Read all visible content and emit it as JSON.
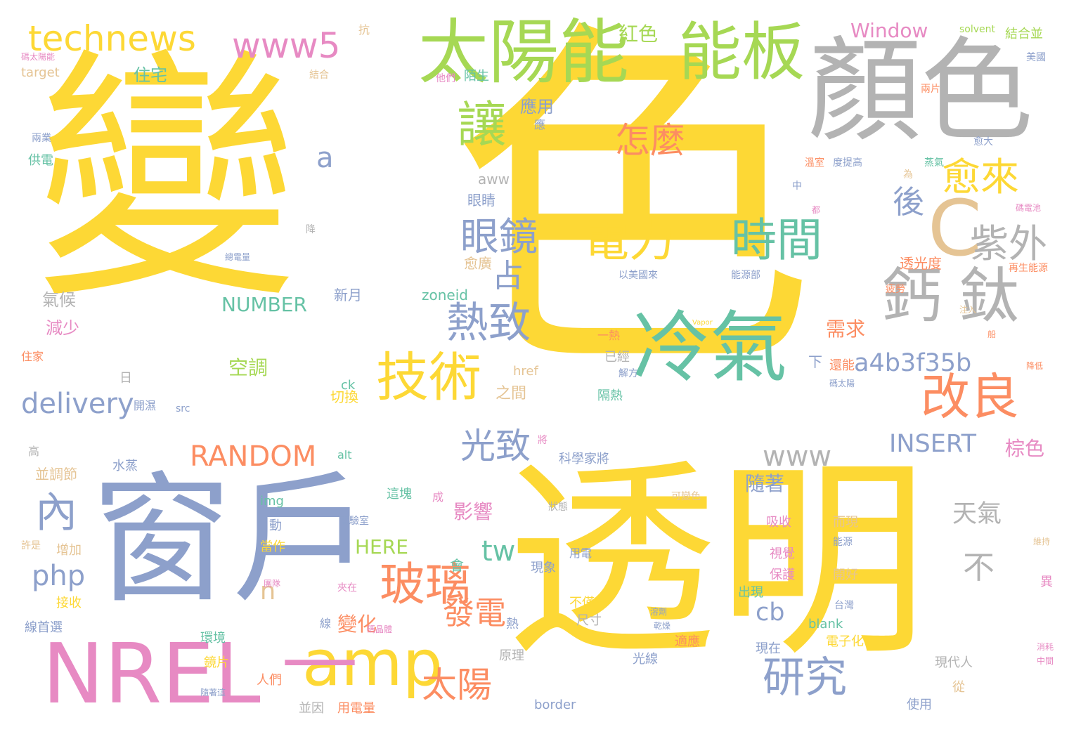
{
  "palette": {
    "yellow": "#fdd835",
    "slate": "#8da0cb",
    "gray": "#b3b3b3",
    "green": "#a6d854",
    "teal": "#66c2a5",
    "orange": "#fc8d62",
    "pink": "#e78ac3",
    "tan": "#e5c494"
  },
  "words": [
    {
      "text": "變",
      "color": "yellow",
      "vertical": false
    },
    {
      "text": "色",
      "color": "yellow",
      "vertical": false
    },
    {
      "text": "透明",
      "color": "yellow",
      "vertical": false
    },
    {
      "text": "窗戶",
      "color": "slate",
      "vertical": false
    },
    {
      "text": "顏色",
      "color": "gray",
      "vertical": false
    },
    {
      "text": "NREL",
      "color": "pink",
      "vertical": false
    },
    {
      "text": "冷氣",
      "color": "teal",
      "vertical": false
    },
    {
      "text": "太陽能",
      "color": "green",
      "vertical": false
    },
    {
      "text": "能板",
      "color": "green",
      "vertical": false
    },
    {
      "text": "amp",
      "color": "yellow",
      "vertical": false
    },
    {
      "text": "—",
      "color": "pink",
      "vertical": false
    },
    {
      "text": "technews",
      "color": "yellow",
      "vertical": false
    },
    {
      "text": "www5",
      "color": "pink",
      "vertical": false
    },
    {
      "text": "鈣",
      "color": "gray",
      "vertical": false
    },
    {
      "text": "鈦",
      "color": "gray",
      "vertical": false
    },
    {
      "text": "C",
      "color": "tan",
      "vertical": false
    },
    {
      "text": "讓",
      "color": "green",
      "vertical": true
    },
    {
      "text": "技術",
      "color": "yellow",
      "vertical": false
    },
    {
      "text": "改良",
      "color": "orange",
      "vertical": false
    },
    {
      "text": "電力",
      "color": "yellow",
      "vertical": false
    },
    {
      "text": "時間",
      "color": "teal",
      "vertical": false
    },
    {
      "text": "玻璃",
      "color": "orange",
      "vertical": false
    },
    {
      "text": "熱致",
      "color": "slate",
      "vertical": false
    },
    {
      "text": "眼鏡",
      "color": "slate",
      "vertical": false
    },
    {
      "text": "研究",
      "color": "slate",
      "vertical": false
    },
    {
      "text": "太陽",
      "color": "orange",
      "vertical": false
    },
    {
      "text": "發電",
      "color": "orange",
      "vertical": false
    },
    {
      "text": "紫外",
      "color": "gray",
      "vertical": false
    },
    {
      "text": "愈來",
      "color": "yellow",
      "vertical": false
    },
    {
      "text": "怎麼",
      "color": "orange",
      "vertical": false
    },
    {
      "text": "光致",
      "color": "slate",
      "vertical": false
    },
    {
      "text": "delivery",
      "color": "slate",
      "vertical": false
    },
    {
      "text": "a4b3f35b",
      "color": "slate",
      "vertical": false
    },
    {
      "text": "RANDOM",
      "color": "orange",
      "vertical": false
    },
    {
      "text": "INSERT",
      "color": "slate",
      "vertical": false
    },
    {
      "text": "www",
      "color": "gray",
      "vertical": false
    },
    {
      "text": "內",
      "color": "slate",
      "vertical": false
    },
    {
      "text": "占",
      "color": "slate",
      "vertical": false
    },
    {
      "text": "後",
      "color": "slate",
      "vertical": false
    },
    {
      "text": "不",
      "color": "gray",
      "vertical": false
    },
    {
      "text": "tw",
      "color": "teal",
      "vertical": false
    },
    {
      "text": "php",
      "color": "slate",
      "vertical": false
    },
    {
      "text": "cb",
      "color": "slate",
      "vertical": false
    },
    {
      "text": "n",
      "color": "tan",
      "vertical": false
    },
    {
      "text": "a",
      "color": "slate",
      "vertical": false
    },
    {
      "text": "NUMBER",
      "color": "teal",
      "vertical": false
    },
    {
      "text": "HERE",
      "color": "green",
      "vertical": false
    },
    {
      "text": "Window",
      "color": "pink",
      "vertical": false
    },
    {
      "text": "空調",
      "color": "green",
      "vertical": false
    },
    {
      "text": "需求",
      "color": "orange",
      "vertical": false
    },
    {
      "text": "天氣",
      "color": "gray",
      "vertical": false
    },
    {
      "text": "隨著",
      "color": "slate",
      "vertical": false
    },
    {
      "text": "變化",
      "color": "orange",
      "vertical": false
    },
    {
      "text": "影響",
      "color": "pink",
      "vertical": false
    },
    {
      "text": "棕色",
      "color": "pink",
      "vertical": false
    },
    {
      "text": "紅色",
      "color": "green",
      "vertical": false
    },
    {
      "text": "住宅",
      "color": "teal",
      "vertical": false
    },
    {
      "text": "應用",
      "color": "slate",
      "vertical": false
    },
    {
      "text": "氣候",
      "color": "gray",
      "vertical": false
    },
    {
      "text": "減少",
      "color": "pink",
      "vertical": false
    },
    {
      "text": "新月",
      "color": "slate",
      "vertical": false
    },
    {
      "text": "zoneid",
      "color": "teal",
      "vertical": false
    },
    {
      "text": "透光度",
      "color": "orange",
      "vertical": false
    },
    {
      "text": "愈廣",
      "color": "tan",
      "vertical": false
    },
    {
      "text": "眼睛",
      "color": "slate",
      "vertical": false
    },
    {
      "text": "aww",
      "color": "gray",
      "vertical": false
    },
    {
      "text": "供電",
      "color": "teal",
      "vertical": false
    },
    {
      "text": "之間",
      "color": "tan",
      "vertical": false
    },
    {
      "text": "切換",
      "color": "yellow",
      "vertical": false
    },
    {
      "text": "ck",
      "color": "teal",
      "vertical": false
    },
    {
      "text": "href",
      "color": "tan",
      "vertical": false
    },
    {
      "text": "下",
      "color": "slate",
      "vertical": false
    },
    {
      "text": "還能",
      "color": "orange",
      "vertical": false
    },
    {
      "text": "已經",
      "color": "gray",
      "vertical": false
    },
    {
      "text": "隔熱",
      "color": "teal",
      "vertical": false
    },
    {
      "text": "解方",
      "color": "slate",
      "vertical": false
    },
    {
      "text": "一熱",
      "color": "orange",
      "vertical": false
    },
    {
      "text": "開濕",
      "color": "slate",
      "vertical": false
    },
    {
      "text": "src",
      "color": "slate",
      "vertical": false
    },
    {
      "text": "日",
      "color": "gray",
      "vertical": false
    },
    {
      "text": "住家",
      "color": "orange",
      "vertical": false
    },
    {
      "text": "alt",
      "color": "teal",
      "vertical": false
    },
    {
      "text": "水蒸",
      "color": "slate",
      "vertical": false
    },
    {
      "text": "科學家將",
      "color": "slate",
      "vertical": false
    },
    {
      "text": "並調節",
      "color": "tan",
      "vertical": false
    },
    {
      "text": "img",
      "color": "teal",
      "vertical": false
    },
    {
      "text": "自動",
      "color": "slate",
      "vertical": false
    },
    {
      "text": "這塊",
      "color": "teal",
      "vertical": false
    },
    {
      "text": "實驗室",
      "color": "slate",
      "vertical": false
    },
    {
      "text": "吸收",
      "color": "pink",
      "vertical": false
    },
    {
      "text": "而現",
      "color": "tan",
      "vertical": false
    },
    {
      "text": "能源",
      "color": "slate",
      "vertical": false
    },
    {
      "text": "視覺",
      "color": "pink",
      "vertical": false
    },
    {
      "text": "保護",
      "color": "pink",
      "vertical": false
    },
    {
      "text": "出現",
      "color": "teal",
      "vertical": false
    },
    {
      "text": "開好",
      "color": "tan",
      "vertical": false
    },
    {
      "text": "台灣",
      "color": "slate",
      "vertical": false
    },
    {
      "text": "接收",
      "color": "yellow",
      "vertical": false
    },
    {
      "text": "增加",
      "color": "tan",
      "vertical": false
    },
    {
      "text": "當作",
      "color": "yellow",
      "vertical": false
    },
    {
      "text": "會",
      "color": "teal",
      "vertical": false
    },
    {
      "text": "現象",
      "color": "slate",
      "vertical": false
    },
    {
      "text": "用電",
      "color": "slate",
      "vertical": false
    },
    {
      "text": "不僅會",
      "color": "yellow",
      "vertical": false
    },
    {
      "text": "尺寸",
      "color": "gray",
      "vertical": false
    },
    {
      "text": "熱",
      "color": "slate",
      "vertical": false
    },
    {
      "text": "原理",
      "color": "gray",
      "vertical": false
    },
    {
      "text": "光線",
      "color": "slate",
      "vertical": false
    },
    {
      "text": "blank",
      "color": "teal",
      "vertical": false
    },
    {
      "text": "電子化",
      "color": "yellow",
      "vertical": false
    },
    {
      "text": "現在",
      "color": "slate",
      "vertical": false
    },
    {
      "text": "適應",
      "color": "orange",
      "vertical": false
    },
    {
      "text": "現代人",
      "color": "gray",
      "vertical": false
    },
    {
      "text": "從",
      "color": "tan",
      "vertical": false
    },
    {
      "text": "使用",
      "color": "slate",
      "vertical": false
    },
    {
      "text": "線首選",
      "color": "slate",
      "vertical": false
    },
    {
      "text": "環境",
      "color": "teal",
      "vertical": false
    },
    {
      "text": "鏡片",
      "color": "yellow",
      "vertical": false
    },
    {
      "text": "人們",
      "color": "orange",
      "vertical": false
    },
    {
      "text": "並因",
      "color": "gray",
      "vertical": false
    },
    {
      "text": "用電量",
      "color": "orange",
      "vertical": false
    },
    {
      "text": "border",
      "color": "slate",
      "vertical": false
    },
    {
      "text": "許是",
      "color": "tan",
      "vertical": false
    },
    {
      "text": "高",
      "color": "gray",
      "vertical": false
    },
    {
      "text": "抗",
      "color": "tan",
      "vertical": false
    },
    {
      "text": "target",
      "color": "tan",
      "vertical": false
    },
    {
      "text": "碼太陽能",
      "color": "pink",
      "vertical": false
    },
    {
      "text": "結合",
      "color": "tan",
      "vertical": false
    },
    {
      "text": "他們",
      "color": "pink",
      "vertical": false
    },
    {
      "text": "陌生",
      "color": "teal",
      "vertical": false
    },
    {
      "text": "兩業",
      "color": "slate",
      "vertical": false
    },
    {
      "text": "solvent",
      "color": "green",
      "vertical": false
    },
    {
      "text": "結合並",
      "color": "green",
      "vertical": false
    },
    {
      "text": "美國",
      "color": "slate",
      "vertical": false
    },
    {
      "text": "兩片",
      "color": "orange",
      "vertical": false
    },
    {
      "text": "愈大",
      "color": "slate",
      "vertical": false
    },
    {
      "text": "溫室",
      "color": "orange",
      "vertical": false
    },
    {
      "text": "度提高",
      "color": "slate",
      "vertical": false
    },
    {
      "text": "蒸氣",
      "color": "teal",
      "vertical": false
    },
    {
      "text": "為",
      "color": "tan",
      "vertical": false
    },
    {
      "text": "碼電池",
      "color": "pink",
      "vertical": false
    },
    {
      "text": "疲勞",
      "color": "orange",
      "vertical": false
    },
    {
      "text": "以美國來",
      "color": "slate",
      "vertical": false
    },
    {
      "text": "能源部",
      "color": "slate",
      "vertical": false
    },
    {
      "text": "再生能源",
      "color": "orange",
      "vertical": false
    },
    {
      "text": "總電量",
      "color": "slate",
      "vertical": false
    },
    {
      "text": "注入",
      "color": "tan",
      "vertical": false
    },
    {
      "text": "船",
      "color": "orange",
      "vertical": false
    },
    {
      "text": "降低",
      "color": "orange",
      "vertical": false
    },
    {
      "text": "碼太陽",
      "color": "slate",
      "vertical": false
    },
    {
      "text": "可變色",
      "color": "tan",
      "vertical": false
    },
    {
      "text": "狀態",
      "color": "gray",
      "vertical": false
    },
    {
      "text": "維持",
      "color": "tan",
      "vertical": false
    },
    {
      "text": "異",
      "color": "pink",
      "vertical": false
    },
    {
      "text": "溶劑",
      "color": "slate",
      "vertical": false
    },
    {
      "text": "乾燥",
      "color": "slate",
      "vertical": false
    },
    {
      "text": "消耗",
      "color": "pink",
      "vertical": false
    },
    {
      "text": "中間",
      "color": "pink",
      "vertical": false
    },
    {
      "text": "隨著這",
      "color": "slate",
      "vertical": false
    },
    {
      "text": "碼晶體",
      "color": "pink",
      "vertical": false
    },
    {
      "text": "夾在",
      "color": "pink",
      "vertical": false
    },
    {
      "text": "團隊",
      "color": "pink",
      "vertical": false
    },
    {
      "text": "線",
      "color": "slate",
      "vertical": false
    },
    {
      "text": "成",
      "color": "pink",
      "vertical": false
    },
    {
      "text": "將",
      "color": "pink",
      "vertical": false
    },
    {
      "text": "中",
      "color": "slate",
      "vertical": false
    },
    {
      "text": "都",
      "color": "pink",
      "vertical": false
    },
    {
      "text": "降",
      "color": "gray",
      "vertical": false
    },
    {
      "text": "應",
      "color": "slate",
      "vertical": false
    },
    {
      "text": "Vapor",
      "color": "yellow",
      "vertical": false
    }
  ]
}
